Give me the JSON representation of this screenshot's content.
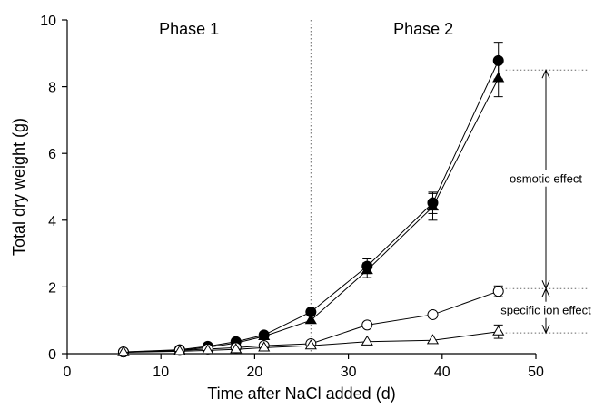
{
  "chart_data": {
    "type": "line",
    "xlabel": "Time after NaCl added (d)",
    "ylabel": "Total dry weight (g)",
    "xlim": [
      0,
      50
    ],
    "ylim": [
      0,
      10
    ],
    "xticks": [
      0,
      10,
      20,
      30,
      40,
      50
    ],
    "yticks": [
      0,
      2,
      4,
      6,
      8,
      10
    ],
    "grid": false,
    "phase_divider_x": 26,
    "phases": [
      {
        "label": "Phase 1",
        "x": 13
      },
      {
        "label": "Phase 2",
        "x": 38
      }
    ],
    "series": [
      {
        "marker": "circle",
        "filled": true,
        "x": [
          6,
          12,
          15,
          18,
          21,
          26,
          32,
          39,
          46
        ],
        "values": [
          0.05,
          0.12,
          0.22,
          0.36,
          0.56,
          1.25,
          2.62,
          4.52,
          8.78
        ],
        "errors": [
          0.02,
          0.03,
          0.04,
          0.05,
          0.06,
          0.1,
          0.22,
          0.32,
          0.55
        ]
      },
      {
        "marker": "triangle",
        "filled": true,
        "x": [
          6,
          12,
          15,
          18,
          21,
          26,
          32,
          39,
          46
        ],
        "values": [
          0.04,
          0.1,
          0.19,
          0.32,
          0.52,
          1.0,
          2.5,
          4.4,
          8.25
        ],
        "errors": [
          0.02,
          0.03,
          0.04,
          0.05,
          0.06,
          0.09,
          0.22,
          0.4,
          0.55
        ]
      },
      {
        "marker": "circle",
        "filled": false,
        "x": [
          6,
          12,
          15,
          18,
          21,
          26,
          32,
          39,
          46
        ],
        "values": [
          0.05,
          0.1,
          0.14,
          0.18,
          0.24,
          0.3,
          0.86,
          1.17,
          1.87
        ],
        "errors": [
          0.02,
          0.02,
          0.02,
          0.03,
          0.03,
          0.04,
          0.06,
          0.1,
          0.16
        ]
      },
      {
        "marker": "triangle",
        "filled": false,
        "x": [
          6,
          12,
          15,
          18,
          21,
          26,
          32,
          39,
          46
        ],
        "values": [
          0.04,
          0.07,
          0.1,
          0.13,
          0.18,
          0.24,
          0.36,
          0.4,
          0.66
        ],
        "errors": [
          0.02,
          0.02,
          0.02,
          0.02,
          0.03,
          0.03,
          0.08,
          0.1,
          0.2
        ]
      }
    ],
    "annotations": [
      {
        "label": "osmotic effect",
        "from": 8.5,
        "to": 1.95
      },
      {
        "label": "specific ion effect",
        "from": 1.95,
        "to": 0.62
      }
    ],
    "reference_levels": [
      8.5,
      1.95,
      0.62
    ]
  }
}
